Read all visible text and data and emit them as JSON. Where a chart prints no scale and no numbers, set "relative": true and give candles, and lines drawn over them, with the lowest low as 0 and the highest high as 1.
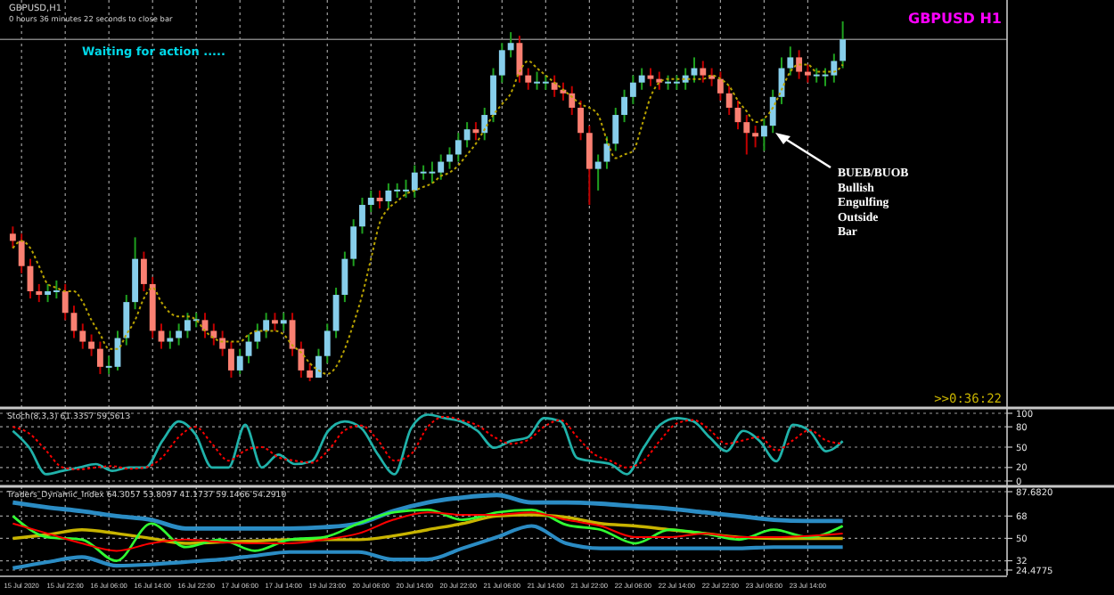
{
  "chart_data": [
    {
      "type": "candlestick",
      "relative": true,
      "grid": "x",
      "categories": [
        null,
        "15 Jul 2020",
        null,
        null,
        null,
        null,
        "15 Jul 22:00",
        null,
        null,
        null,
        null,
        "16 Jul 06:00",
        null,
        null,
        null,
        null,
        "16 Jul 14:00",
        null,
        null,
        null,
        null,
        "16 Jul 22:00",
        null,
        null,
        null,
        null,
        "17 Jul 06:00",
        null,
        null,
        null,
        null,
        "17 Jul 14:00",
        null,
        null,
        null,
        null,
        "19 Jul 23:00",
        null,
        null,
        null,
        null,
        "20 Jul 06:00",
        null,
        null,
        null,
        null,
        "20 Jul 14:00",
        null,
        null,
        null,
        null,
        "20 Jul 22:00",
        null,
        null,
        null,
        null,
        "21 Jul 06:00",
        null,
        null,
        null,
        null,
        "21 Jul 14:00",
        null,
        null,
        null,
        null,
        "21 Jul 22:00",
        null,
        null,
        null,
        null,
        "22 Jul 06:00",
        null,
        null,
        null,
        null,
        "22 Jul 14:00",
        null,
        null,
        null,
        null,
        "22 Jul 22:00",
        null,
        null,
        null,
        null,
        "23 Jul 06:00",
        null,
        null,
        null,
        null,
        "23 Jul 14:00",
        null,
        null,
        null,
        null
      ],
      "ohlc": [
        [
          0.41,
          0.43,
          0.37,
          0.39
        ],
        [
          0.39,
          0.41,
          0.3,
          0.32
        ],
        [
          0.32,
          0.34,
          0.23,
          0.25
        ],
        [
          0.25,
          0.27,
          0.22,
          0.24
        ],
        [
          0.24,
          0.27,
          0.22,
          0.25
        ],
        [
          0.25,
          0.28,
          0.23,
          0.25
        ],
        [
          0.25,
          0.27,
          0.17,
          0.19
        ],
        [
          0.19,
          0.21,
          0.12,
          0.14
        ],
        [
          0.14,
          0.16,
          0.09,
          0.11
        ],
        [
          0.11,
          0.13,
          0.07,
          0.09
        ],
        [
          0.09,
          0.11,
          0.02,
          0.04
        ],
        [
          0.04,
          0.07,
          0.02,
          0.04
        ],
        [
          0.04,
          0.14,
          0.03,
          0.12
        ],
        [
          0.12,
          0.24,
          0.1,
          0.22
        ],
        [
          0.22,
          0.4,
          0.2,
          0.34
        ],
        [
          0.34,
          0.36,
          0.25,
          0.27
        ],
        [
          0.27,
          0.29,
          0.12,
          0.14
        ],
        [
          0.14,
          0.16,
          0.09,
          0.11
        ],
        [
          0.11,
          0.14,
          0.09,
          0.12
        ],
        [
          0.12,
          0.16,
          0.1,
          0.14
        ],
        [
          0.14,
          0.19,
          0.12,
          0.17
        ],
        [
          0.17,
          0.19,
          0.15,
          0.17
        ],
        [
          0.17,
          0.19,
          0.12,
          0.14
        ],
        [
          0.14,
          0.16,
          0.1,
          0.12
        ],
        [
          0.12,
          0.14,
          0.07,
          0.09
        ],
        [
          0.09,
          0.11,
          0.01,
          0.03
        ],
        [
          0.03,
          0.09,
          0.02,
          0.07
        ],
        [
          0.07,
          0.13,
          0.05,
          0.11
        ],
        [
          0.11,
          0.16,
          0.09,
          0.14
        ],
        [
          0.14,
          0.19,
          0.12,
          0.17
        ],
        [
          0.17,
          0.19,
          0.14,
          0.16
        ],
        [
          0.16,
          0.19,
          0.14,
          0.17
        ],
        [
          0.17,
          0.19,
          0.07,
          0.09
        ],
        [
          0.09,
          0.11,
          0.01,
          0.03
        ],
        [
          0.03,
          0.05,
          0,
          0.01
        ],
        [
          0.01,
          0.09,
          0.01,
          0.07
        ],
        [
          0.07,
          0.16,
          0.05,
          0.14
        ],
        [
          0.14,
          0.26,
          0.12,
          0.24
        ],
        [
          0.24,
          0.36,
          0.22,
          0.34
        ],
        [
          0.34,
          0.45,
          0.32,
          0.43
        ],
        [
          0.43,
          0.51,
          0.41,
          0.49
        ],
        [
          0.49,
          0.53,
          0.47,
          0.51
        ],
        [
          0.51,
          0.53,
          0.48,
          0.5
        ],
        [
          0.5,
          0.55,
          0.48,
          0.53
        ],
        [
          0.53,
          0.55,
          0.51,
          0.53
        ],
        [
          0.53,
          0.56,
          0.51,
          0.53
        ],
        [
          0.53,
          0.6,
          0.51,
          0.58
        ],
        [
          0.58,
          0.6,
          0.56,
          0.58
        ],
        [
          0.58,
          0.61,
          0.55,
          0.58
        ],
        [
          0.58,
          0.63,
          0.56,
          0.61
        ],
        [
          0.61,
          0.65,
          0.59,
          0.63
        ],
        [
          0.63,
          0.69,
          0.61,
          0.67
        ],
        [
          0.67,
          0.72,
          0.65,
          0.7
        ],
        [
          0.7,
          0.72,
          0.67,
          0.69
        ],
        [
          0.69,
          0.76,
          0.67,
          0.74
        ],
        [
          0.74,
          0.87,
          0.72,
          0.85
        ],
        [
          0.85,
          0.94,
          0.83,
          0.92
        ],
        [
          0.92,
          0.97,
          0.9,
          0.94
        ],
        [
          0.94,
          0.96,
          0.83,
          0.85
        ],
        [
          0.85,
          0.87,
          0.81,
          0.83
        ],
        [
          0.83,
          0.86,
          0.81,
          0.83
        ],
        [
          0.83,
          0.85,
          0.81,
          0.83
        ],
        [
          0.83,
          0.85,
          0.79,
          0.81
        ],
        [
          0.81,
          0.83,
          0.78,
          0.8
        ],
        [
          0.8,
          0.82,
          0.74,
          0.76
        ],
        [
          0.76,
          0.78,
          0.67,
          0.69
        ],
        [
          0.69,
          0.71,
          0.49,
          0.59
        ],
        [
          0.59,
          0.63,
          0.53,
          0.61
        ],
        [
          0.61,
          0.68,
          0.59,
          0.66
        ],
        [
          0.66,
          0.76,
          0.64,
          0.74
        ],
        [
          0.74,
          0.81,
          0.72,
          0.79
        ],
        [
          0.79,
          0.85,
          0.77,
          0.83
        ],
        [
          0.83,
          0.87,
          0.81,
          0.85
        ],
        [
          0.85,
          0.87,
          0.82,
          0.84
        ],
        [
          0.84,
          0.86,
          0.81,
          0.83
        ],
        [
          0.83,
          0.85,
          0.81,
          0.83
        ],
        [
          0.83,
          0.85,
          0.81,
          0.83
        ],
        [
          0.83,
          0.87,
          0.81,
          0.85
        ],
        [
          0.85,
          0.9,
          0.83,
          0.87
        ],
        [
          0.87,
          0.89,
          0.83,
          0.85
        ],
        [
          0.85,
          0.87,
          0.82,
          0.84
        ],
        [
          0.84,
          0.86,
          0.78,
          0.8
        ],
        [
          0.8,
          0.82,
          0.74,
          0.76
        ],
        [
          0.76,
          0.78,
          0.7,
          0.72
        ],
        [
          0.72,
          0.74,
          0.63,
          0.69
        ],
        [
          0.69,
          0.71,
          0.65,
          0.68
        ],
        [
          0.68,
          0.73,
          0.64,
          0.71
        ],
        [
          0.71,
          0.81,
          0.69,
          0.79
        ],
        [
          0.79,
          0.9,
          0.77,
          0.87
        ],
        [
          0.87,
          0.93,
          0.85,
          0.9
        ],
        [
          0.9,
          0.92,
          0.84,
          0.86
        ],
        [
          0.86,
          0.88,
          0.83,
          0.85
        ],
        [
          0.85,
          0.87,
          0.83,
          0.85
        ],
        [
          0.85,
          0.87,
          0.82,
          0.85
        ],
        [
          0.85,
          0.91,
          0.83,
          0.89
        ],
        [
          0.89,
          1,
          0.87,
          0.95
        ]
      ],
      "series": [
        {
          "type": "line",
          "color": "#b8a200",
          "line_style": "dotted",
          "values": [
            0.37,
            0.39,
            0.37,
            0.32,
            0.27,
            0.26,
            0.25,
            0.25,
            0.22,
            0.17,
            0.13,
            0.09,
            0.09,
            0.13,
            0.17,
            0.23,
            0.26,
            0.22,
            0.19,
            0.18,
            0.18,
            0.17,
            0.14,
            0.12,
            0.11,
            0.11,
            0.11,
            0.13,
            0.14,
            0.14,
            0.14,
            0.13,
            0.1,
            0.08,
            0.05,
            0.03,
            0.02,
            0.04,
            0.09,
            0.16,
            0.24,
            0.34,
            0.44,
            0.48,
            0.5,
            0.52,
            0.53,
            0.54,
            0.55,
            0.57,
            0.58,
            0.6,
            0.63,
            0.66,
            0.7,
            0.74,
            0.77,
            0.8,
            0.86,
            0.89,
            0.87,
            0.85,
            0.83,
            0.81,
            0.79,
            0.77,
            0.76,
            0.74,
            0.67,
            0.62,
            0.63,
            0.64,
            0.71,
            0.79,
            0.83,
            0.84,
            0.84,
            0.84,
            0.84,
            0.84,
            0.85,
            0.84,
            0.82,
            0.78,
            0.75,
            0.72,
            0.73,
            0.76,
            0.81,
            0.86,
            0.88,
            0.88,
            0.86,
            0.86,
            0.86,
            0.88
          ]
        }
      ],
      "ref_lines": [
        {
          "axis": "y",
          "value": 0.95,
          "color": "#7f7f7f"
        }
      ],
      "annotations": [
        "GBPUSD,H1",
        "0 hours 36 minutes 22 seconds to close bar",
        "Waiting for action .....",
        "GBPUSD H1",
        ">>0:36:22",
        "BUEB/BUOB Bullish Engulfing Outside Bar"
      ]
    },
    {
      "type": "line",
      "title": "Stoch(8,3,3) 61.3357 59.5613",
      "tick_labels": "y",
      "grid": "y",
      "ylim": [
        0,
        100
      ],
      "yticks": [
        0,
        20,
        50,
        80,
        100
      ],
      "categories": [
        null,
        null,
        null,
        null,
        null,
        null,
        null,
        null,
        null,
        null,
        null,
        null,
        null,
        null,
        null,
        null,
        null,
        null,
        null,
        null,
        null,
        null,
        null,
        null,
        null,
        null,
        null,
        null,
        null,
        null,
        null,
        null,
        null,
        null,
        null,
        null,
        null,
        null,
        null,
        null,
        null,
        null,
        null,
        null,
        null,
        null,
        null,
        null,
        null,
        null,
        null
      ],
      "series": [
        {
          "color": "#20b2aa",
          "line_style": "solid",
          "values": [
            74,
            49,
            10,
            15,
            20,
            25,
            15,
            20,
            20,
            59,
            88,
            69,
            20,
            20,
            83,
            20,
            39,
            25,
            29,
            74,
            88,
            78,
            39,
            10,
            78,
            98,
            93,
            88,
            74,
            49,
            59,
            64,
            93,
            88,
            34,
            29,
            25,
            10,
            49,
            83,
            93,
            88,
            64,
            44,
            74,
            59,
            29,
            83,
            74,
            44,
            59
          ]
        },
        {
          "color": "#ff0000",
          "line_style": "dotted",
          "values": [
            80,
            70,
            45,
            20,
            17,
            20,
            22,
            18,
            20,
            35,
            65,
            80,
            55,
            30,
            45,
            50,
            35,
            30,
            27,
            45,
            75,
            82,
            60,
            30,
            40,
            80,
            95,
            90,
            82,
            65,
            55,
            60,
            80,
            90,
            65,
            40,
            30,
            20,
            30,
            60,
            85,
            90,
            75,
            55,
            60,
            65,
            45,
            60,
            75,
            60,
            55
          ]
        }
      ]
    },
    {
      "type": "line",
      "title": "Traders_Dynamic_Index 64.3057 53.8097 41.1737 59.1466 54.2910",
      "tick_labels": "y",
      "grid": "y",
      "ylim": [
        24.4775,
        87.682
      ],
      "yticks": [
        {
          "value": 24.4775,
          "label": "24.4775"
        },
        32,
        50,
        68,
        {
          "value": 87.682,
          "label": "87.6820"
        }
      ],
      "categories": [
        null,
        null,
        null,
        null,
        null,
        null,
        null,
        null,
        null,
        null,
        null,
        null,
        null,
        null,
        null,
        null,
        null,
        null,
        null,
        null,
        null,
        null,
        null,
        null,
        null
      ],
      "series": [
        {
          "color": "#2b8cc4",
          "line_style": "solid",
          "values": [
            79,
            75,
            72,
            68,
            65,
            58,
            58,
            58,
            58,
            59,
            62,
            72,
            79,
            83,
            85,
            79,
            79,
            78,
            76,
            74,
            71,
            68,
            65,
            64,
            64
          ]
        },
        {
          "color": "#2b8cc4",
          "line_style": "solid",
          "values": [
            26,
            31,
            35,
            28,
            29,
            31,
            33,
            36,
            39,
            39,
            39,
            33,
            33,
            42,
            51,
            60,
            46,
            42,
            42,
            42,
            42,
            42,
            43,
            43,
            43
          ]
        },
        {
          "color": "#c8b400",
          "line_style": "solid",
          "values": [
            50,
            53,
            57,
            54,
            50,
            46,
            47,
            48,
            49,
            49,
            49,
            52,
            57,
            62,
            68,
            69,
            67,
            62,
            60,
            57,
            54,
            51,
            50,
            50,
            50
          ]
        },
        {
          "color": "#32ff32",
          "line_style": "solid",
          "values": [
            68,
            51,
            49,
            32,
            62,
            43,
            49,
            40,
            49,
            51,
            62,
            71,
            73,
            65,
            71,
            73,
            61,
            57,
            46,
            57,
            54,
            49,
            57,
            51,
            60
          ]
        },
        {
          "color": "#ff0000",
          "line_style": "solid",
          "values": [
            62,
            54,
            46,
            40,
            46,
            49,
            47,
            46,
            46,
            49,
            54,
            65,
            71,
            69,
            69,
            71,
            65,
            60,
            51,
            51,
            54,
            51,
            51,
            52,
            54
          ]
        }
      ]
    }
  ]
}
